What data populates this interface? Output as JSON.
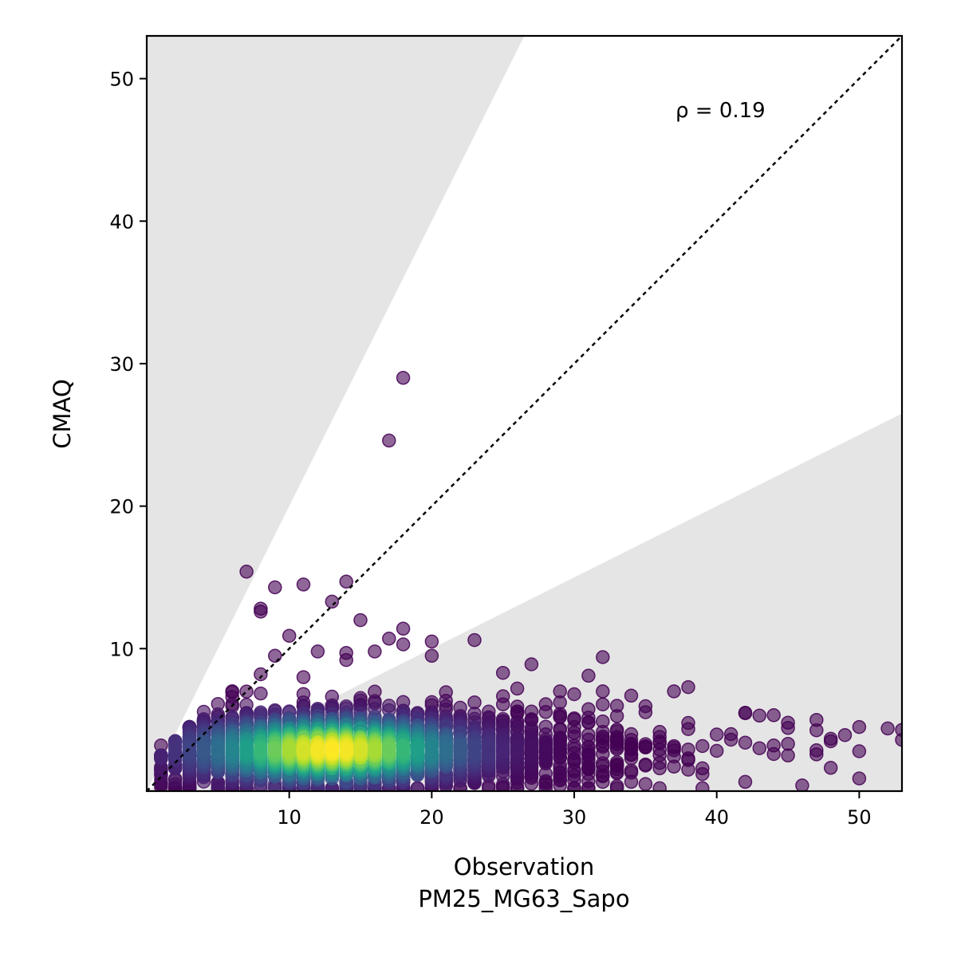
{
  "chart_data": {
    "type": "scatter",
    "title": "",
    "xlabel": "Observation",
    "xlabel_line2": "PM25_MG63_Sapo",
    "ylabel": "CMAQ",
    "xlim": [
      0,
      53
    ],
    "ylim": [
      0,
      53
    ],
    "x_ticks": [
      10,
      20,
      30,
      40,
      50
    ],
    "y_ticks": [
      10,
      20,
      30,
      40,
      50
    ],
    "annotation": "ρ = 0.19",
    "reference_line": "1:1 dashed",
    "shaded_region": "outside factor-of-2 band (y > 2x, y < x/2)",
    "shade_color": "#e5e5e5",
    "colormap": "viridis",
    "marker_alpha": 0.6,
    "points": [
      [
        18,
        29
      ],
      [
        17,
        24.6
      ],
      [
        7,
        15.4
      ],
      [
        9,
        14.3
      ],
      [
        11,
        14.5
      ],
      [
        14,
        14.7
      ],
      [
        13,
        13.3
      ],
      [
        8,
        12.8
      ],
      [
        8,
        12.6
      ],
      [
        15,
        12.0
      ],
      [
        18,
        11.4
      ],
      [
        10,
        10.9
      ],
      [
        17,
        10.7
      ],
      [
        20,
        10.5
      ],
      [
        23,
        10.6
      ],
      [
        18,
        10.3
      ],
      [
        12,
        9.8
      ],
      [
        14,
        9.7
      ],
      [
        16,
        9.8
      ],
      [
        20,
        9.5
      ],
      [
        9,
        9.5
      ],
      [
        14,
        9.2
      ],
      [
        11,
        8.0
      ],
      [
        8,
        8.2
      ],
      [
        25,
        8.3
      ],
      [
        27,
        8.9
      ],
      [
        31,
        8.1
      ],
      [
        32,
        9.4
      ],
      [
        37,
        7.0
      ],
      [
        38,
        7.3
      ],
      [
        34,
        6.7
      ],
      [
        32,
        7.0
      ],
      [
        29,
        7.0
      ],
      [
        30,
        6.8
      ],
      [
        26,
        7.2
      ],
      [
        6,
        6.1
      ],
      [
        3,
        4.4
      ],
      [
        1,
        3.2
      ],
      [
        45,
        4.8
      ],
      [
        47,
        5.0
      ],
      [
        50,
        4.5
      ],
      [
        52,
        4.4
      ],
      [
        53,
        4.3
      ],
      [
        42,
        5.5
      ],
      [
        43,
        5.3
      ],
      [
        44,
        2.6
      ],
      [
        45,
        2.5
      ],
      [
        46,
        0.4
      ],
      [
        39,
        1.2
      ],
      [
        38,
        2.3
      ],
      [
        36,
        1.6
      ],
      [
        34,
        1.3
      ],
      [
        35,
        0.5
      ],
      [
        33,
        0.2
      ],
      [
        31,
        0.7
      ],
      [
        28,
        0.6
      ],
      [
        22,
        0.2
      ],
      [
        50,
        2.8
      ],
      [
        48,
        3.5
      ],
      [
        53,
        3.6
      ],
      [
        41,
        4.0
      ],
      [
        42,
        3.4
      ],
      [
        36,
        3.8
      ],
      [
        33,
        4.2
      ],
      [
        29,
        4.3
      ],
      [
        27,
        5.0
      ]
    ],
    "cluster": {
      "x_center": 13,
      "y_center": 2.9,
      "x_spread": 7,
      "y_spread": 1.4,
      "count": 2600,
      "seed": 7
    }
  }
}
